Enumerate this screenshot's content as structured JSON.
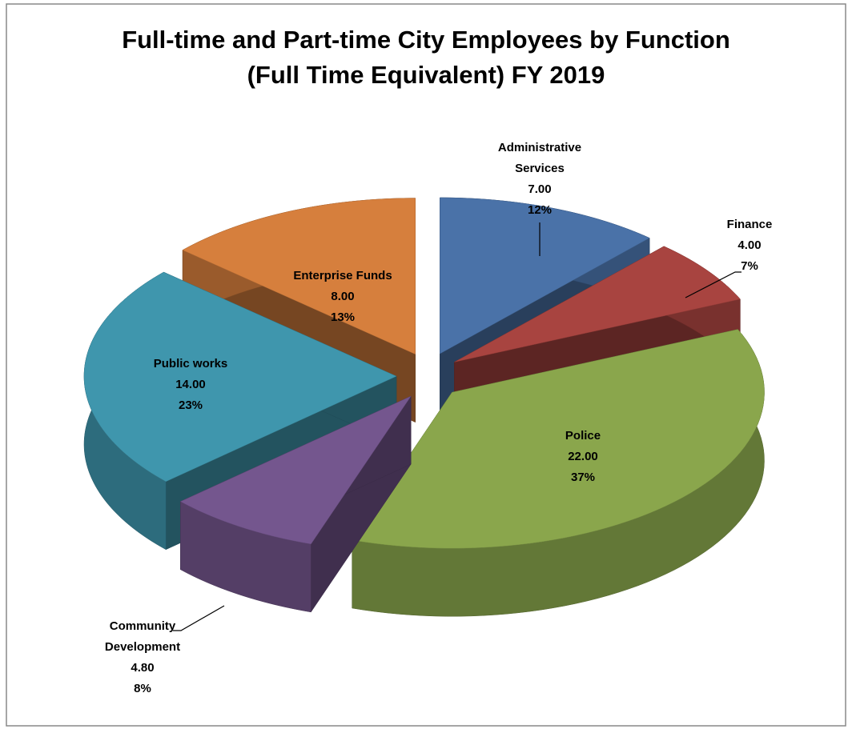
{
  "chart_data": {
    "type": "pie3d",
    "title": "Full-time and Part-time City Employees by Function\n(Full Time Equivalent) FY 2019",
    "categories": [
      "Administrative Services",
      "Finance",
      "Police",
      "Community Development",
      "Public works",
      "Enterprise Funds"
    ],
    "values": [
      7,
      4,
      22,
      4.8,
      14,
      8
    ],
    "value_labels": [
      "7.00",
      "4.00",
      "22.00",
      "4.80",
      "14.00",
      "8.00"
    ],
    "percent_labels": [
      "12%",
      "7%",
      "37%",
      "8%",
      "23%",
      "13%"
    ],
    "colors": [
      "#4a72a8",
      "#a84440",
      "#8aa64c",
      "#74568e",
      "#3f96ad",
      "#d67f3d"
    ]
  }
}
